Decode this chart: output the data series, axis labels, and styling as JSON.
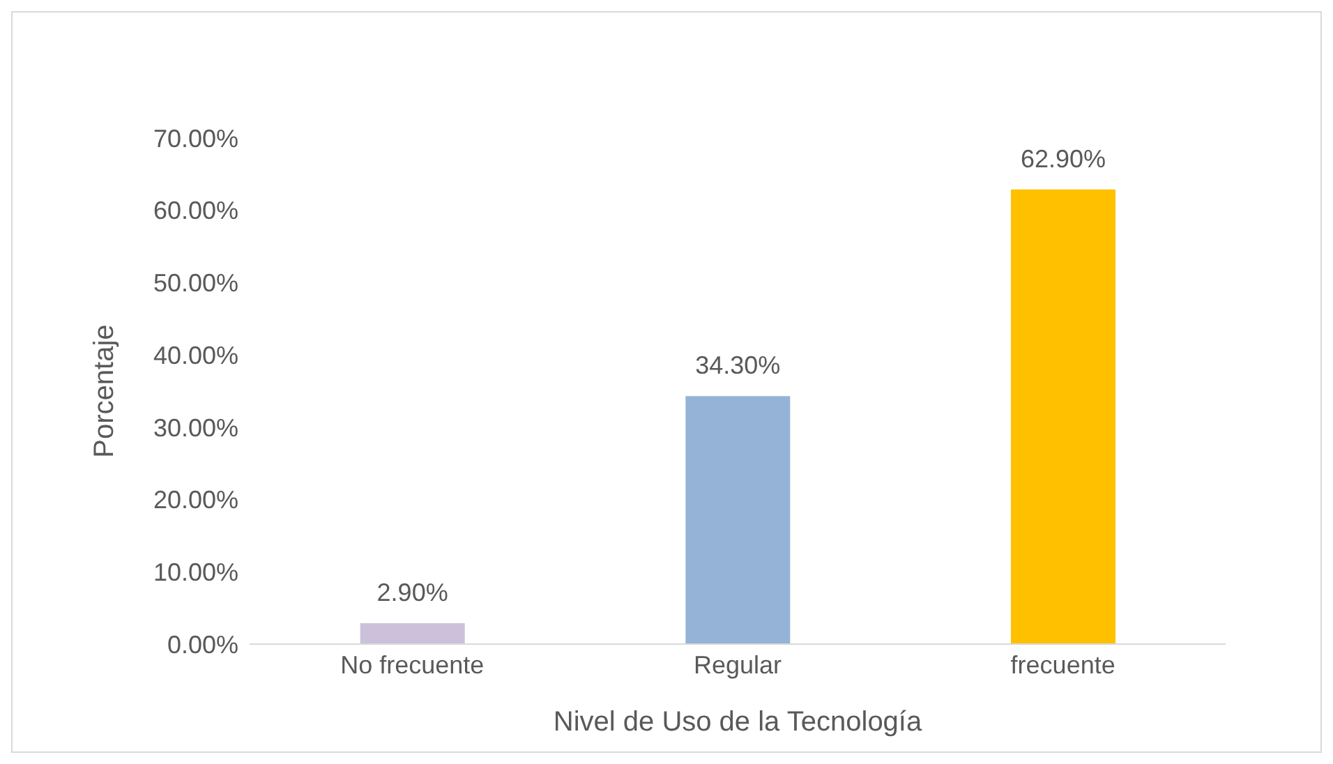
{
  "chart_data": {
    "type": "bar",
    "xlabel": "Nivel de Uso de la Tecnología",
    "ylabel": "Porcentaje",
    "categories": [
      "No frecuente",
      "Regular",
      "frecuente"
    ],
    "values": [
      2.9,
      34.3,
      62.9
    ],
    "colors": [
      "#ccc1da",
      "#95b3d7",
      "#ffc000"
    ],
    "value_labels": [
      "2.90%",
      "34.30%",
      "62.90%"
    ],
    "ylim": [
      0,
      70
    ],
    "yticks": [
      {
        "value": 0,
        "label": "0.00%"
      },
      {
        "value": 10,
        "label": "10.00%"
      },
      {
        "value": 20,
        "label": "20.00%"
      },
      {
        "value": 30,
        "label": "30.00%"
      },
      {
        "value": 40,
        "label": "40.00%"
      },
      {
        "value": 50,
        "label": "50.00%"
      },
      {
        "value": 60,
        "label": "60.00%"
      },
      {
        "value": 70,
        "label": "70.00%"
      }
    ],
    "grid": false,
    "legend": false
  }
}
